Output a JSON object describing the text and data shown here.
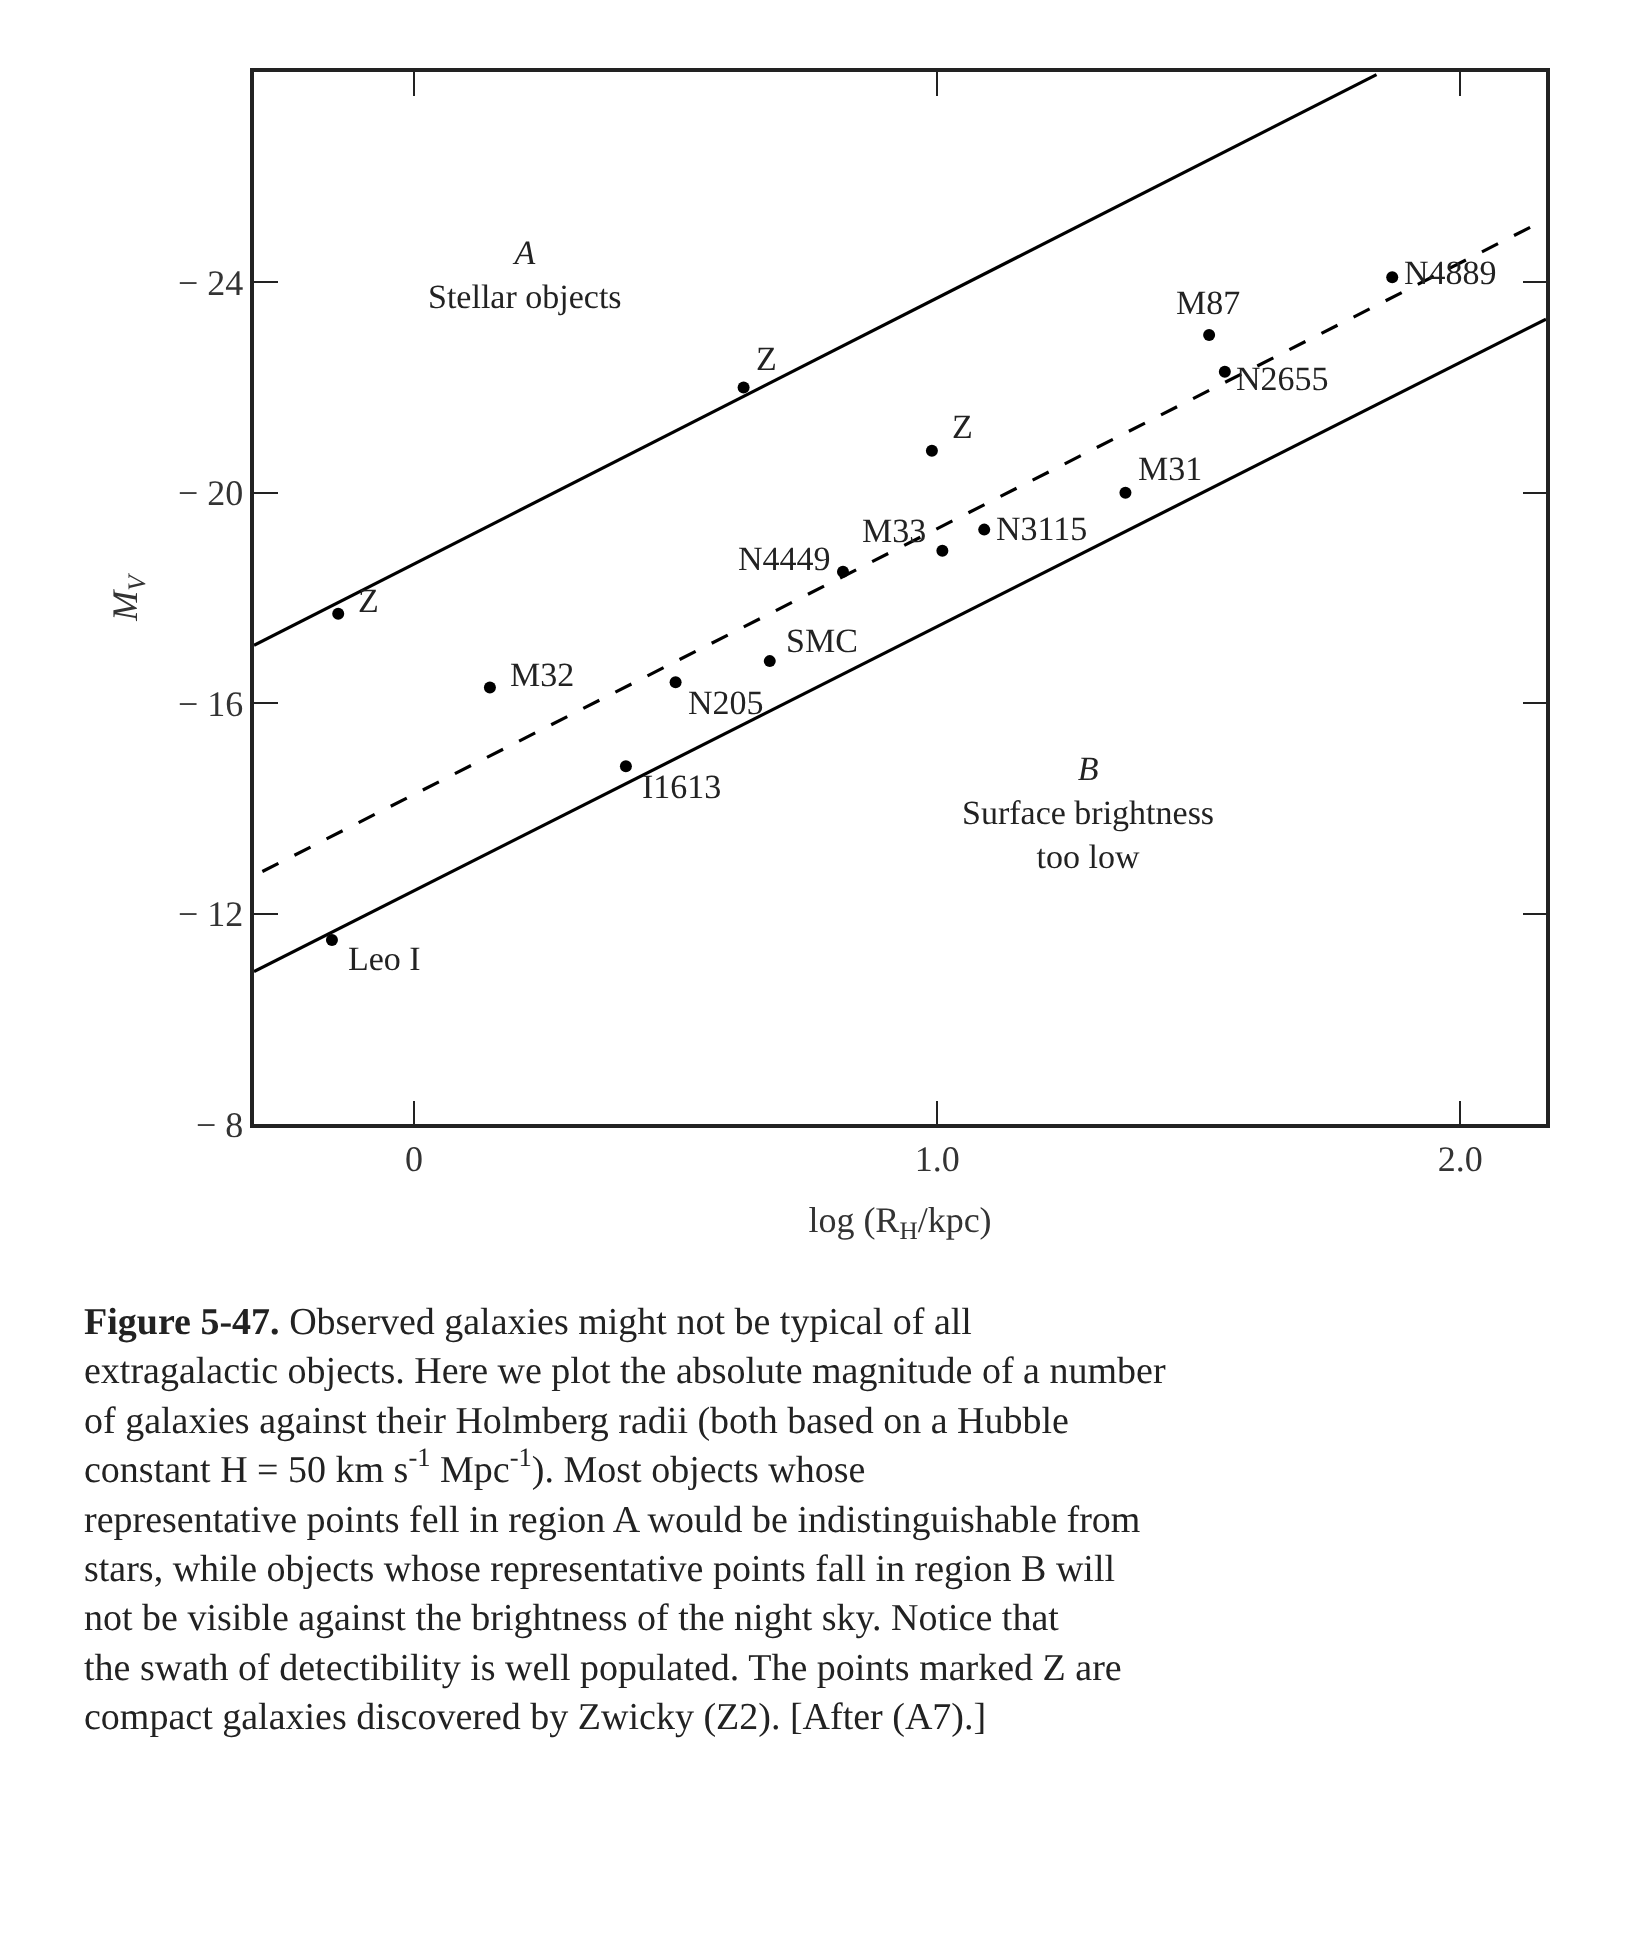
{
  "chart_data": {
    "type": "scatter",
    "xlabel": "log (R$_{H}$/kpc)",
    "ylabel": "M$_{V}$",
    "xlim": [
      -0.306,
      2.164
    ],
    "xticks": [
      0,
      {
        "value": 1,
        "label": "1.0"
      },
      {
        "value": 2,
        "label": "2.0"
      }
    ],
    "ylim": [
      -8,
      -28
    ],
    "yticks": [
      {
        "value": -8,
        "label": "− 8"
      },
      {
        "value": -12,
        "label": "− 12"
      },
      {
        "value": -16,
        "label": "− 16"
      },
      {
        "value": -20,
        "label": "− 20"
      },
      {
        "value": -24,
        "label": "− 24"
      }
    ],
    "series": [
      {
        "marker": "circle",
        "color": "#000000",
        "x": [
          -0.145,
          0.145,
          -0.157,
          0.405,
          0.5,
          0.68,
          0.82,
          0.63,
          0.99,
          1.01,
          1.09,
          1.36,
          1.52,
          1.55,
          1.87
        ],
        "values": [
          -17.7,
          -16.3,
          -11.5,
          -14.8,
          -16.4,
          -16.8,
          -18.5,
          -22.0,
          -20.8,
          -18.9,
          -19.3,
          -20.0,
          -23.0,
          -22.3,
          -24.1
        ]
      },
      {
        "type": "line",
        "color": "#000000",
        "line_style": "solid",
        "x": [
          -0.306,
          1.84
        ],
        "values": [
          -17.1,
          -27.95
        ]
      },
      {
        "type": "line",
        "color": "#000000",
        "line_style": "dashed",
        "x": [
          -0.29,
          2.164
        ],
        "values": [
          -12.8,
          -25.2
        ]
      },
      {
        "type": "line",
        "color": "#000000",
        "line_style": "solid",
        "x": [
          -0.306,
          2.164
        ],
        "values": [
          -10.9,
          -23.3
        ]
      }
    ],
    "annotations": [
      {
        "text": "Z",
        "x": -0.145,
        "y": -17.7
      },
      {
        "text": "M32",
        "x": 0.145,
        "y": -16.3
      },
      {
        "text": "Leo I",
        "x": -0.157,
        "y": -11.5
      },
      {
        "text": "I1613",
        "x": 0.405,
        "y": -14.8
      },
      {
        "text": "N205",
        "x": 0.5,
        "y": -16.4
      },
      {
        "text": "SMC",
        "x": 0.68,
        "y": -16.8
      },
      {
        "text": "N4449",
        "x": 0.82,
        "y": -18.5
      },
      {
        "text": "Z",
        "x": 0.63,
        "y": -22.0
      },
      {
        "text": "Z",
        "x": 0.99,
        "y": -20.8
      },
      {
        "text": "M33",
        "x": 1.01,
        "y": -18.9
      },
      {
        "text": "N3115",
        "x": 1.09,
        "y": -19.3
      },
      {
        "text": "M31",
        "x": 1.36,
        "y": -20.0
      },
      {
        "text": "M87",
        "x": 1.52,
        "y": -23.0
      },
      {
        "text": "N2655",
        "x": 1.55,
        "y": -22.3
      },
      {
        "text": "N4889",
        "x": 1.87,
        "y": -24.1
      },
      "A\nStellar objects",
      "B\nSurface brightness\ntoo low",
      "Figure 5-47. Observed galaxies might not be typical of all extragalactic objects. Here we plot the absolute magnitude of a number of galaxies against their Holmberg radii (both based on a Hubble constant H = 50 km s$^{-1}$ Mpc$^{-1}$). Most objects whose representative points fell in region A would be indistinguishable from stars, while objects whose representative points fall in region B will not be visible against the brightness of the night sky. Notice that the swath of detectibility is well populated. The points marked Z are compact galaxies discovered by Zwicky (Z2). [After (A7).]"
    ]
  }
}
